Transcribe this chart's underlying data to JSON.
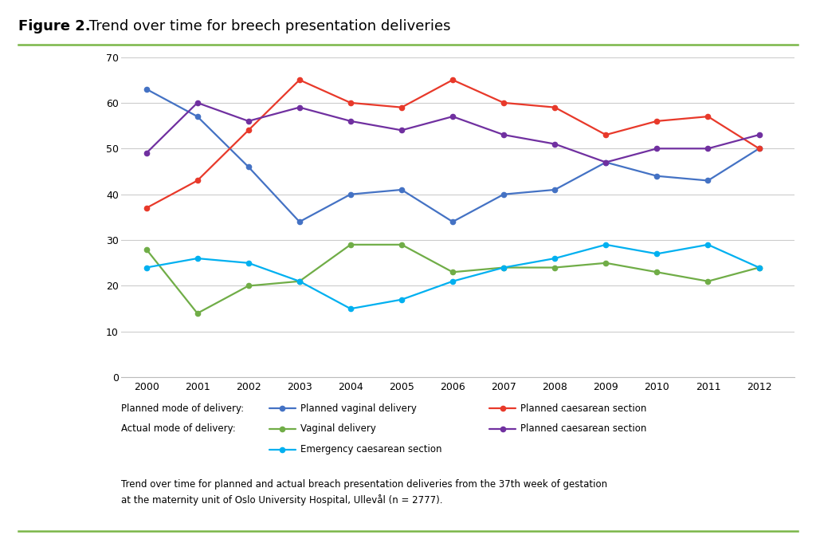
{
  "years": [
    2000,
    2001,
    2002,
    2003,
    2004,
    2005,
    2006,
    2007,
    2008,
    2009,
    2010,
    2011,
    2012
  ],
  "planned_vaginal": [
    63,
    57,
    46,
    34,
    40,
    41,
    34,
    40,
    41,
    47,
    44,
    43,
    50
  ],
  "planned_caesarean": [
    37,
    43,
    54,
    65,
    60,
    59,
    65,
    60,
    59,
    53,
    56,
    57,
    50
  ],
  "actual_vaginal": [
    28,
    14,
    20,
    21,
    29,
    29,
    23,
    24,
    24,
    25,
    23,
    21,
    24
  ],
  "actual_planned_caesarean": [
    49,
    60,
    56,
    59,
    56,
    54,
    57,
    53,
    51,
    47,
    50,
    50,
    53
  ],
  "actual_emergency_caesarean": [
    24,
    26,
    25,
    21,
    15,
    17,
    21,
    24,
    26,
    29,
    27,
    29,
    24
  ],
  "colors": {
    "planned_vaginal": "#4472C4",
    "planned_caesarean": "#E8392A",
    "actual_vaginal": "#70AD47",
    "actual_planned_caesarean": "#7030A0",
    "actual_emergency_caesarean": "#00B0F0"
  },
  "title_bold": "Figure 2.",
  "title_normal": " Trend over time for breech presentation deliveries",
  "ylim": [
    0,
    70
  ],
  "yticks": [
    0,
    10,
    20,
    30,
    40,
    50,
    60,
    70
  ],
  "legend_labels": {
    "planned_vaginal": "Planned vaginal delivery",
    "planned_caesarean_red": "Planned caesarean section",
    "actual_vaginal": "Vaginal delivery",
    "actual_planned_caesarean": "Planned caesarean section",
    "actual_emergency_caesarean": "Emergency caesarean section"
  },
  "legend_mode_labels": {
    "planned": "Planned mode of delivery:",
    "actual": "Actual mode of delivery:"
  },
  "caption": "Trend over time for planned and actual breach presentation deliveries from the 37th week of gestation\nat the maternity unit of Oslo University Hospital, Ullevål (n = 2777).",
  "background_color": "#ffffff",
  "grid_color": "#cccccc",
  "title_line_color": "#7ab648",
  "bottom_line_color": "#7ab648"
}
